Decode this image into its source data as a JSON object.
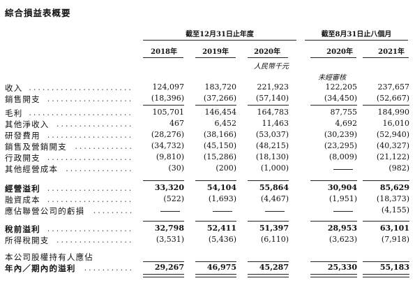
{
  "title": "綜合損益表概要",
  "header": {
    "group1": "截至12月31日止年度",
    "group2": "截至8月31日止八個月",
    "years": [
      "2018年",
      "2019年",
      "2020年",
      "2020年",
      "2021年"
    ],
    "unit": "人民幣千元",
    "unaudited": "未經審核",
    "dots": "................................"
  },
  "rows": [
    {
      "label": "收入",
      "values": [
        "124,097",
        "183,720",
        "221,923",
        "122,205",
        "237,657"
      ]
    },
    {
      "label": "銷售開支",
      "values": [
        "(18,396)",
        "(37,266)",
        "(57,140)",
        "(34,450)",
        "(52,667)"
      ]
    },
    {
      "label": "毛利",
      "values": [
        "105,701",
        "146,454",
        "164,783",
        "87,755",
        "184,990"
      ]
    },
    {
      "label": "其他淨收入",
      "values": [
        "467",
        "6,452",
        "11,463",
        "4,692",
        "16,010"
      ]
    },
    {
      "label": "研發費用",
      "values": [
        "(28,276)",
        "(38,166)",
        "(53,037)",
        "(30,239)",
        "(52,940)"
      ]
    },
    {
      "label": "銷售及營銷開支",
      "values": [
        "(34,732)",
        "(45,150)",
        "(48,215)",
        "(23,295)",
        "(40,327)"
      ]
    },
    {
      "label": "行政開支",
      "values": [
        "(9,810)",
        "(15,286)",
        "(18,130)",
        "(8,009)",
        "(21,122)"
      ]
    },
    {
      "label": "其他經營成本",
      "values": [
        "(30)",
        "(200)",
        "(1,000)",
        "—",
        "(982)"
      ]
    },
    {
      "label": "經營溢利",
      "values": [
        "33,320",
        "54,104",
        "55,864",
        "30,904",
        "85,629"
      ]
    },
    {
      "label": "融資成本",
      "values": [
        "(522)",
        "(1,693)",
        "(4,467)",
        "(1,951)",
        "(18,373)"
      ]
    },
    {
      "label": "應佔聯營公司的虧損",
      "values": [
        "—",
        "—",
        "—",
        "—",
        "(4,155)"
      ]
    },
    {
      "label": "稅前溢利",
      "values": [
        "32,798",
        "52,411",
        "51,397",
        "28,953",
        "63,101"
      ]
    },
    {
      "label": "所得稅開支",
      "values": [
        "(3,531)",
        "(5,436)",
        "(6,110)",
        "(3,623)",
        "(7,918)"
      ]
    },
    {
      "label": "本公司股權持有人應佔"
    },
    {
      "label": "年內／期內的溢利",
      "values": [
        "29,267",
        "46,975",
        "45,287",
        "25,330",
        "55,183"
      ]
    }
  ]
}
